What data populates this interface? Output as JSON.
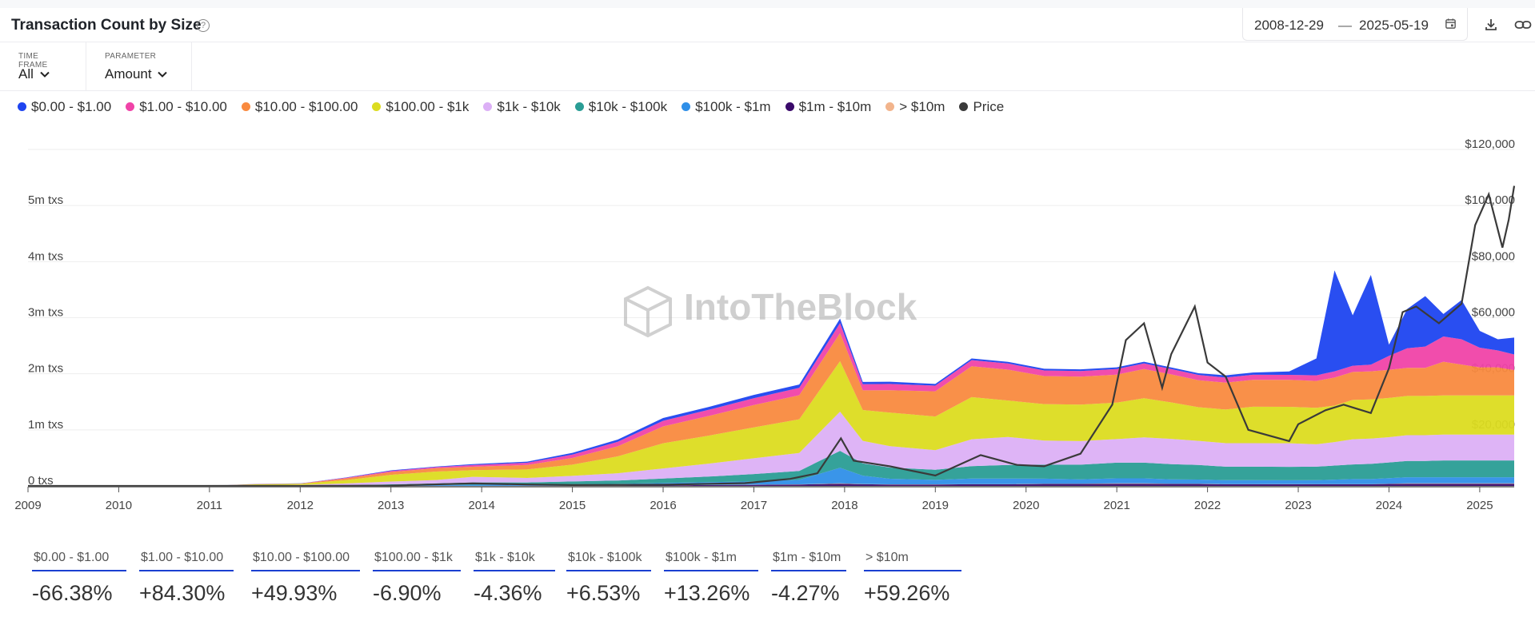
{
  "header": {
    "title": "Transaction Count by Size",
    "date_start": "2008-12-29",
    "date_separator": "—",
    "date_end": "2025-05-19"
  },
  "controls": {
    "timeframe_label": "TIME FRAME",
    "timeframe_value": "All",
    "parameter_label": "PARAMETER",
    "parameter_value": "Amount"
  },
  "legend": [
    {
      "label": "$0.00 - $1.00",
      "color": "#1e44f0"
    },
    {
      "label": "$1.00 - $10.00",
      "color": "#f043a8"
    },
    {
      "label": "$10.00 - $100.00",
      "color": "#f98a3f"
    },
    {
      "label": "$100.00 - $1k",
      "color": "#dcdc20"
    },
    {
      "label": "$1k - $10k",
      "color": "#dcb0f6"
    },
    {
      "label": "$10k - $100k",
      "color": "#2a9d95"
    },
    {
      "label": "$100k - $1m",
      "color": "#2f8fe8"
    },
    {
      "label": "$1m - $10m",
      "color": "#3a0a6a"
    },
    {
      "label": "> $10m",
      "color": "#f2b48c"
    },
    {
      "label": "Price",
      "color": "#3a3a3a"
    }
  ],
  "watermark": "IntoTheBlock",
  "stats": [
    {
      "label": "$0.00 - $1.00",
      "value": "-66.38%"
    },
    {
      "label": "$1.00 - $10.00",
      "value": "+84.30%"
    },
    {
      "label": "$10.00 - $100.00",
      "value": "+49.93%"
    },
    {
      "label": "$100.00 - $1k",
      "value": "-6.90%"
    },
    {
      "label": "$1k - $10k",
      "value": "-4.36%"
    },
    {
      "label": "$10k - $100k",
      "value": "+6.53%"
    },
    {
      "label": "$100k - $1m",
      "value": "+13.26%"
    },
    {
      "label": "$1m - $10m",
      "value": "-4.27%"
    },
    {
      "label": "> $10m",
      "value": "+59.26%"
    }
  ],
  "chart_data": {
    "type": "area",
    "stacked": true,
    "xlabel": "",
    "ylabel": "",
    "x_ticks": [
      "2009",
      "2010",
      "2011",
      "2012",
      "2013",
      "2014",
      "2015",
      "2016",
      "2017",
      "2018",
      "2019",
      "2020",
      "2021",
      "2022",
      "2023",
      "2024",
      "2025"
    ],
    "y_ticks_left": [
      "0 txs",
      "1m txs",
      "2m txs",
      "3m txs",
      "4m txs",
      "5m txs"
    ],
    "y_ticks_right": [
      "$20,000",
      "$40,000",
      "$60,000",
      "$80,000",
      "$100,000",
      "$120,000"
    ],
    "ylim_left": [
      0,
      6000000
    ],
    "ylim_right": [
      0,
      120000
    ],
    "x": [
      2009.0,
      2010.0,
      2011.0,
      2011.5,
      2012.0,
      2012.5,
      2013.0,
      2013.5,
      2013.9,
      2014.5,
      2015.0,
      2015.5,
      2016.0,
      2016.5,
      2017.0,
      2017.5,
      2017.95,
      2018.2,
      2018.5,
      2019.0,
      2019.4,
      2019.8,
      2020.2,
      2020.6,
      2021.0,
      2021.3,
      2021.6,
      2021.9,
      2022.2,
      2022.5,
      2022.9,
      2023.2,
      2023.4,
      2023.6,
      2023.8,
      2024.0,
      2024.2,
      2024.4,
      2024.6,
      2024.8,
      2025.0,
      2025.2,
      2025.38
    ],
    "series": [
      {
        "name": "$1m - $10m",
        "values": [
          0,
          0,
          0,
          0,
          0,
          0,
          0,
          1000,
          2000,
          3000,
          4000,
          6000,
          10000,
          15000,
          20000,
          25000,
          40000,
          30000,
          25000,
          25000,
          30000,
          30000,
          35000,
          35000,
          40000,
          40000,
          35000,
          35000,
          30000,
          30000,
          28000,
          30000,
          30000,
          30000,
          30000,
          35000,
          40000,
          40000,
          40000,
          40000,
          40000,
          40000,
          40000
        ]
      },
      {
        "name": "> $10m",
        "values": [
          0,
          0,
          0,
          0,
          0,
          0,
          0,
          0,
          0,
          0,
          500,
          1000,
          1500,
          2000,
          3000,
          3000,
          5000,
          4000,
          3000,
          3000,
          3000,
          3000,
          4000,
          4000,
          5000,
          5000,
          4000,
          4000,
          3000,
          3000,
          3000,
          3000,
          3000,
          3000,
          3000,
          4000,
          5000,
          5000,
          5000,
          5000,
          5000,
          5000,
          5000
        ]
      },
      {
        "name": "$100k - $1m",
        "values": [
          0,
          0,
          0,
          1000,
          2000,
          4000,
          8000,
          15000,
          20000,
          20000,
          25000,
          30000,
          40000,
          50000,
          60000,
          80000,
          280000,
          150000,
          100000,
          80000,
          100000,
          100000,
          90000,
          80000,
          90000,
          90000,
          80000,
          75000,
          70000,
          70000,
          70000,
          70000,
          80000,
          90000,
          90000,
          100000,
          110000,
          110000,
          110000,
          110000,
          110000,
          110000,
          110000
        ]
      },
      {
        "name": "$10k - $100k",
        "values": [
          0,
          0,
          0,
          2000,
          5000,
          10000,
          20000,
          30000,
          40000,
          40000,
          50000,
          60000,
          80000,
          100000,
          130000,
          160000,
          300000,
          220000,
          200000,
          180000,
          220000,
          240000,
          250000,
          260000,
          280000,
          280000,
          270000,
          260000,
          240000,
          240000,
          240000,
          240000,
          250000,
          260000,
          270000,
          280000,
          290000,
          290000,
          300000,
          300000,
          300000,
          300000,
          300000
        ]
      },
      {
        "name": "$1k - $10k",
        "values": [
          0,
          0,
          0,
          5000,
          10000,
          30000,
          50000,
          60000,
          100000,
          80000,
          100000,
          130000,
          180000,
          230000,
          280000,
          320000,
          700000,
          400000,
          380000,
          350000,
          480000,
          500000,
          430000,
          420000,
          420000,
          450000,
          450000,
          430000,
          420000,
          420000,
          420000,
          400000,
          420000,
          450000,
          450000,
          450000,
          460000,
          460000,
          460000,
          460000,
          460000,
          460000,
          460000
        ]
      },
      {
        "name": "$100.00 - $1k",
        "values": [
          0,
          0,
          0,
          20000,
          20000,
          60000,
          120000,
          150000,
          120000,
          150000,
          200000,
          300000,
          450000,
          500000,
          550000,
          600000,
          900000,
          550000,
          600000,
          600000,
          750000,
          650000,
          650000,
          650000,
          650000,
          700000,
          650000,
          600000,
          600000,
          650000,
          650000,
          650000,
          650000,
          700000,
          700000,
          700000,
          700000,
          700000,
          700000,
          700000,
          700000,
          700000,
          700000
        ]
      },
      {
        "name": "$10.00 - $100.00",
        "values": [
          0,
          0,
          0,
          5000,
          5000,
          30000,
          50000,
          60000,
          60000,
          80000,
          120000,
          180000,
          300000,
          350000,
          400000,
          430000,
          500000,
          350000,
          400000,
          450000,
          550000,
          550000,
          500000,
          500000,
          500000,
          520000,
          500000,
          480000,
          480000,
          480000,
          480000,
          480000,
          500000,
          500000,
          500000,
          500000,
          500000,
          500000,
          600000,
          550000,
          500000,
          500000,
          450000
        ]
      },
      {
        "name": "$1.00 - $10.00",
        "values": [
          0,
          0,
          0,
          1000,
          1000,
          10000,
          20000,
          20000,
          30000,
          40000,
          60000,
          80000,
          100000,
          110000,
          120000,
          130000,
          180000,
          110000,
          110000,
          100000,
          110000,
          110000,
          100000,
          100000,
          100000,
          100000,
          95000,
          95000,
          90000,
          90000,
          90000,
          100000,
          110000,
          110000,
          120000,
          250000,
          350000,
          380000,
          450000,
          450000,
          350000,
          300000,
          280000
        ]
      },
      {
        "name": "$0.00 - $1.00",
        "values": [
          0,
          0,
          0,
          1000,
          2000,
          5000,
          10000,
          10000,
          15000,
          20000,
          30000,
          40000,
          50000,
          50000,
          60000,
          60000,
          80000,
          40000,
          40000,
          30000,
          30000,
          30000,
          30000,
          30000,
          30000,
          30000,
          30000,
          30000,
          40000,
          40000,
          60000,
          300000,
          1800000,
          900000,
          1600000,
          200000,
          700000,
          900000,
          400000,
          700000,
          300000,
          200000,
          300000
        ]
      }
    ],
    "price": {
      "name": "Price",
      "axis": "right",
      "x": [
        2009.0,
        2010.0,
        2010.8,
        2011.45,
        2012.0,
        2013.0,
        2013.9,
        2014.5,
        2015.0,
        2016.0,
        2016.9,
        2017.4,
        2017.7,
        2017.96,
        2018.1,
        2018.5,
        2019.0,
        2019.5,
        2019.9,
        2020.2,
        2020.6,
        2020.95,
        2021.1,
        2021.3,
        2021.5,
        2021.6,
        2021.86,
        2022.0,
        2022.2,
        2022.45,
        2022.9,
        2023.0,
        2023.3,
        2023.5,
        2023.8,
        2024.0,
        2024.15,
        2024.3,
        2024.55,
        2024.8,
        2024.95,
        2025.1,
        2025.25,
        2025.32,
        2025.38
      ],
      "values": [
        0,
        0,
        0,
        30,
        5,
        100,
        900,
        500,
        300,
        420,
        1000,
        2500,
        4500,
        17000,
        9000,
        7000,
        3700,
        11000,
        7500,
        7000,
        11500,
        29000,
        52000,
        58000,
        35000,
        47000,
        64000,
        44000,
        39000,
        20000,
        16000,
        22000,
        27000,
        29000,
        26000,
        42000,
        62000,
        64000,
        58000,
        65000,
        93000,
        104000,
        85000,
        95000,
        107000
      ]
    }
  }
}
